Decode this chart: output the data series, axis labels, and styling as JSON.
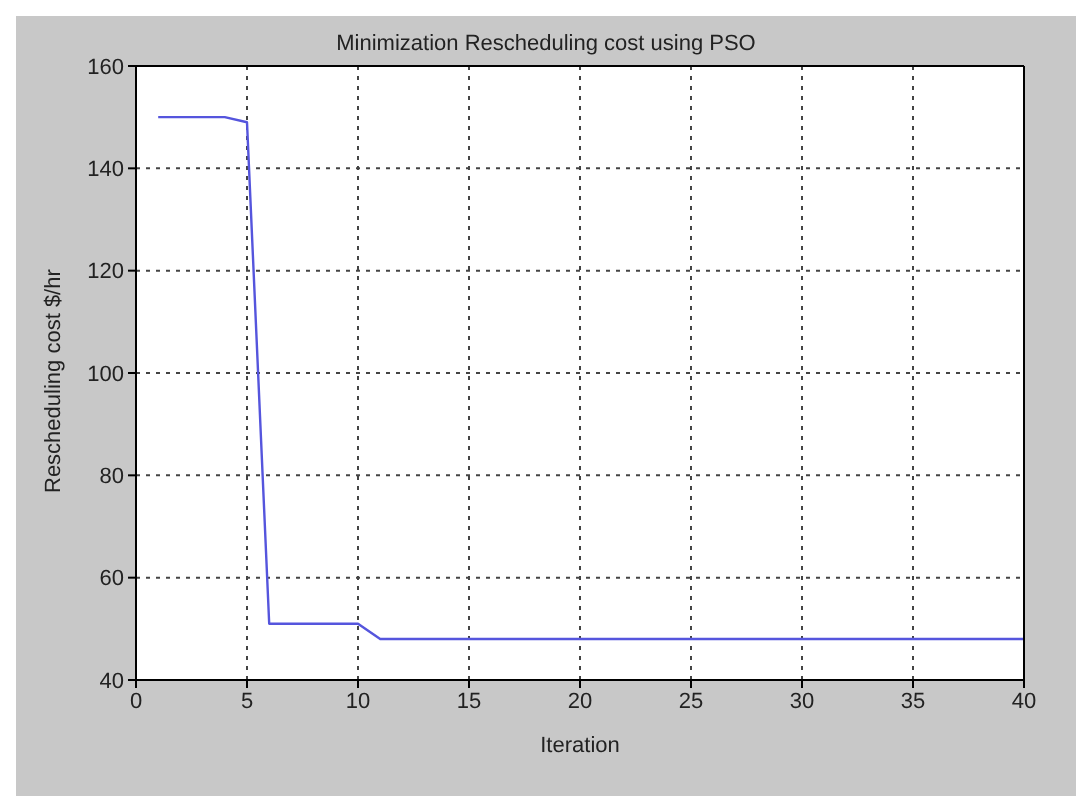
{
  "chart_data": {
    "type": "line",
    "title": "Minimization Rescheduling cost using PSO",
    "xlabel": "Iteration",
    "ylabel": "Rescheduling cost $/hr",
    "x": [
      1,
      2,
      3,
      4,
      5,
      6,
      7,
      8,
      9,
      10,
      11,
      12,
      13,
      14,
      15,
      16,
      17,
      18,
      19,
      20,
      21,
      22,
      23,
      24,
      25,
      26,
      27,
      28,
      29,
      30,
      31,
      32,
      33,
      34,
      35,
      36,
      37,
      38,
      39,
      40
    ],
    "series": [
      {
        "color": "#5555dd",
        "values": [
          150,
          150,
          150,
          150,
          149,
          51,
          51,
          51,
          51,
          51,
          48,
          48,
          48,
          48,
          48,
          48,
          48,
          48,
          48,
          48,
          48,
          48,
          48,
          48,
          48,
          48,
          48,
          48,
          48,
          48,
          48,
          48,
          48,
          48,
          48,
          48,
          48,
          48,
          48,
          48
        ]
      }
    ],
    "xlim": [
      0,
      40
    ],
    "xticks": [
      0,
      5,
      10,
      15,
      20,
      25,
      30,
      35,
      40
    ],
    "ylim": [
      40,
      160
    ],
    "yticks": [
      40,
      60,
      80,
      100,
      120,
      140,
      160
    ],
    "grid": true,
    "marker": "none",
    "line_style": "solid",
    "legend": false
  }
}
